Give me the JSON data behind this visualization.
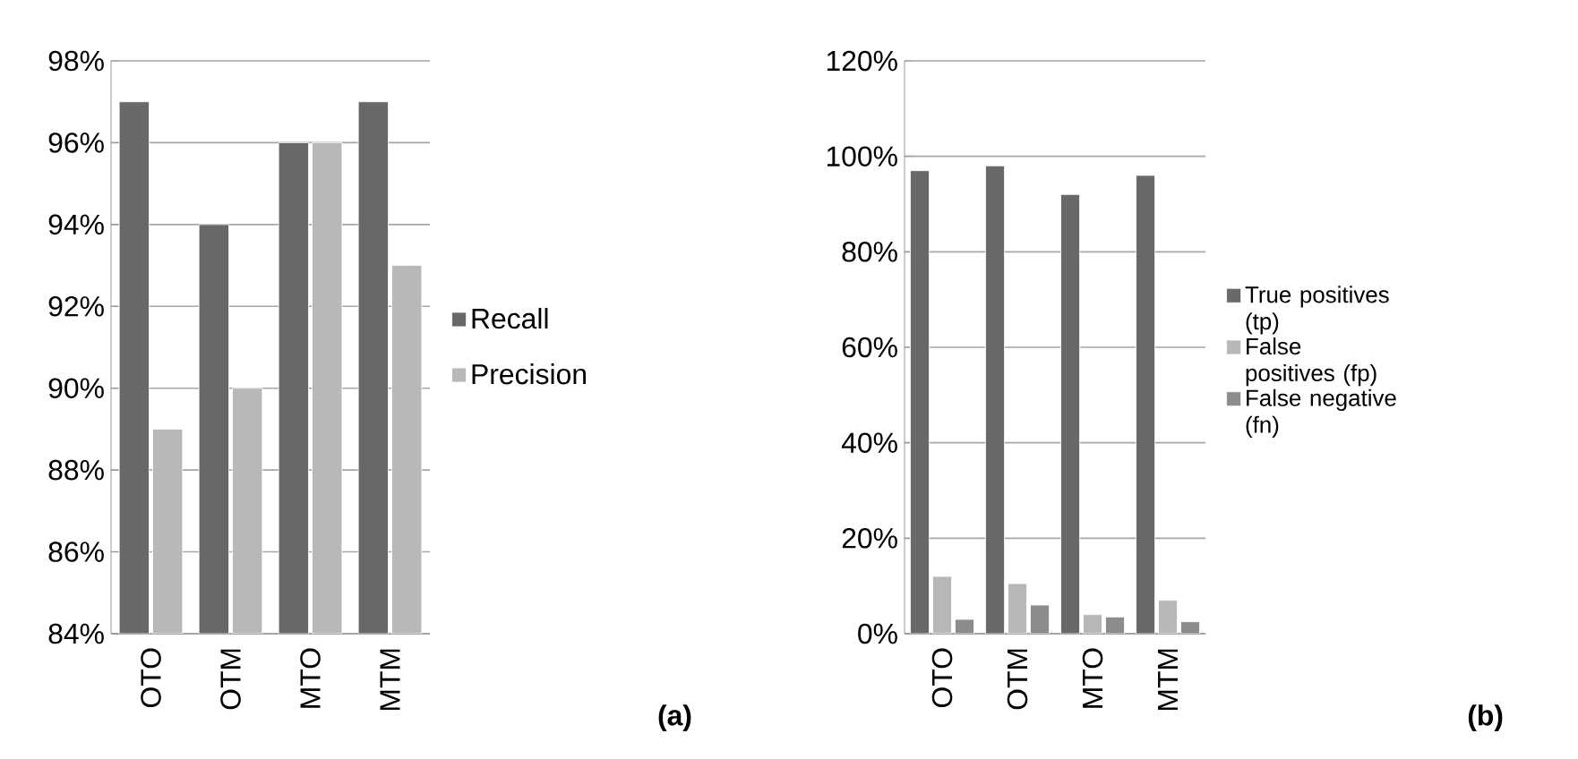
{
  "chart_data": [
    {
      "type": "bar",
      "categories": [
        "OTO",
        "OTM",
        "MTO",
        "MTM"
      ],
      "series": [
        {
          "name": "Recall",
          "color": "#686868",
          "values": [
            97,
            94,
            96,
            97
          ]
        },
        {
          "name": "Precision",
          "color": "#b8b8b8",
          "values": [
            89,
            90,
            96,
            93
          ]
        }
      ],
      "ylim": [
        84,
        98
      ],
      "yticks": [
        {
          "value": 84,
          "label": "84%"
        },
        {
          "value": 86,
          "label": "86%"
        },
        {
          "value": 88,
          "label": "88%"
        },
        {
          "value": 90,
          "label": "90%"
        },
        {
          "value": 92,
          "label": "92%"
        },
        {
          "value": 94,
          "label": "94%"
        },
        {
          "value": 96,
          "label": "96%"
        },
        {
          "value": 98,
          "label": "98%"
        }
      ],
      "grid": "y",
      "legend": "right",
      "annotations": [
        "(a)"
      ]
    },
    {
      "type": "bar",
      "categories": [
        "OTO",
        "OTM",
        "MTO",
        "MTM"
      ],
      "series": [
        {
          "name": "True positives (tp)",
          "color": "#686868",
          "values": [
            97,
            98,
            92,
            96
          ]
        },
        {
          "name": "False positives (fp)",
          "color": "#b8b8b8",
          "values": [
            12,
            10.5,
            4,
            7
          ]
        },
        {
          "name": "False negative (fn)",
          "color": "#8c8c8c",
          "values": [
            3,
            6,
            3.5,
            2.5
          ]
        }
      ],
      "ylim": [
        0,
        120
      ],
      "yticks": [
        {
          "value": 0,
          "label": "0%"
        },
        {
          "value": 20,
          "label": "20%"
        },
        {
          "value": 40,
          "label": "40%"
        },
        {
          "value": 60,
          "label": "60%"
        },
        {
          "value": 80,
          "label": "80%"
        },
        {
          "value": 100,
          "label": "100%"
        },
        {
          "value": 120,
          "label": "120%"
        }
      ],
      "grid": "y",
      "legend": "right",
      "annotations": [
        "(b)"
      ]
    }
  ]
}
